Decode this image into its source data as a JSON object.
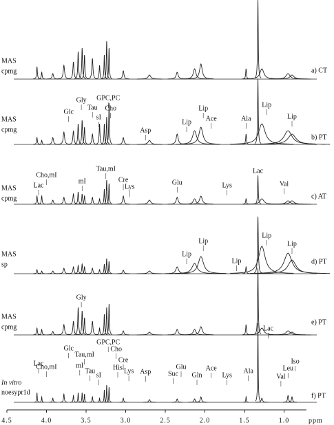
{
  "chart_data": {
    "type": "line",
    "xlabel": "ppm",
    "xlim": [
      4.5,
      0.5
    ],
    "xticks": [
      4.5,
      {
        "value": 4,
        "label": "4.0"
      },
      3.5,
      {
        "value": 3,
        "label": "3.0"
      },
      2.5,
      {
        "value": 2,
        "label": "2.0"
      },
      1.5,
      {
        "value": 1,
        "label": "1.0"
      }
    ],
    "color": "#222",
    "x": [
      4.12,
      4.06,
      3.92,
      3.78,
      3.66,
      3.6,
      3.55,
      3.52,
      3.42,
      3.33,
      3.27,
      3.24,
      3.21,
      3.03,
      2.7,
      2.35,
      2.13,
      2.05,
      1.48,
      1.33,
      1.28,
      0.95,
      0.9
    ],
    "series": [
      {
        "labels": [
          "MAS",
          "cpmg"
        ],
        "tag": "a) CT",
        "values": [
          18,
          10,
          8,
          20,
          25,
          40,
          45,
          35,
          30,
          20,
          35,
          55,
          45,
          12,
          6,
          10,
          15,
          22,
          15,
          115,
          15,
          8,
          6
        ],
        "widths": [
          0.006,
          0.006,
          0.01,
          0.01,
          0.008,
          0.006,
          0.006,
          0.006,
          0.008,
          0.006,
          0.005,
          0.005,
          0.005,
          0.01,
          0.02,
          0.015,
          0.02,
          0.02,
          0.006,
          0.005,
          0.03,
          0.03,
          0.03
        ],
        "annotations": []
      },
      {
        "labels": [
          "MAS",
          "cpmg"
        ],
        "tag": "b) PT",
        "values": [
          10,
          6,
          10,
          18,
          20,
          30,
          35,
          25,
          15,
          30,
          30,
          40,
          60,
          10,
          6,
          15,
          20,
          25,
          15,
          95,
          30,
          20,
          15
        ],
        "widths": [
          0.006,
          0.006,
          0.01,
          0.01,
          0.008,
          0.006,
          0.006,
          0.006,
          0.008,
          0.006,
          0.005,
          0.005,
          0.005,
          0.01,
          0.02,
          0.015,
          0.03,
          0.03,
          0.006,
          0.005,
          0.05,
          0.06,
          0.06
        ],
        "annotations": [
          {
            "text": "Glc",
            "x": 3.72
          },
          {
            "text": "Gly",
            "x": 3.56
          },
          {
            "text": "Tau",
            "x": 3.42
          },
          {
            "text": "sI",
            "x": 3.34
          },
          {
            "text": "GPC,PC",
            "x": 3.22
          },
          {
            "text": "Cho",
            "x": 3.19
          },
          {
            "text": "Asp",
            "x": 2.75
          },
          {
            "text": "Lip",
            "x": 2.23
          },
          {
            "text": "Lip",
            "x": 2.02
          },
          {
            "text": "Ace",
            "x": 1.92
          },
          {
            "text": "Ala",
            "x": 1.48
          },
          {
            "text": "Lip",
            "x": 1.22
          },
          {
            "text": "Lip",
            "x": 0.9
          }
        ]
      },
      {
        "labels": [
          "MAS",
          "cpmg"
        ],
        "tag": "c) AT",
        "values": [
          12,
          12,
          6,
          10,
          15,
          18,
          15,
          12,
          10,
          8,
          22,
          35,
          30,
          12,
          6,
          10,
          8,
          12,
          8,
          42,
          8,
          5,
          5
        ],
        "widths": [
          0.006,
          0.006,
          0.01,
          0.01,
          0.008,
          0.006,
          0.006,
          0.006,
          0.008,
          0.006,
          0.005,
          0.005,
          0.005,
          0.01,
          0.02,
          0.015,
          0.02,
          0.02,
          0.006,
          0.005,
          0.03,
          0.03,
          0.03
        ],
        "annotations": [
          {
            "text": "Lac",
            "x": 4.1
          },
          {
            "text": "Cho,mI",
            "x": 4.0
          },
          {
            "text": "mI",
            "x": 3.55
          },
          {
            "text": "Tau,mI",
            "x": 3.25
          },
          {
            "text": "Cre",
            "x": 3.03
          },
          {
            "text": "Lys",
            "x": 2.95
          },
          {
            "text": "Glu",
            "x": 2.35
          },
          {
            "text": "Lys",
            "x": 1.72
          },
          {
            "text": "Val",
            "x": 1.0
          },
          {
            "text": "Lac",
            "x": 1.33
          }
        ]
      },
      {
        "labels": [
          "MAS",
          "sp"
        ],
        "tag": "d) PT",
        "values": [
          6,
          4,
          4,
          8,
          10,
          12,
          14,
          10,
          8,
          6,
          14,
          22,
          18,
          5,
          4,
          10,
          15,
          25,
          10,
          83,
          40,
          30,
          20
        ],
        "widths": [
          0.006,
          0.006,
          0.01,
          0.01,
          0.008,
          0.006,
          0.006,
          0.006,
          0.008,
          0.006,
          0.005,
          0.005,
          0.005,
          0.01,
          0.02,
          0.02,
          0.04,
          0.04,
          0.006,
          0.006,
          0.05,
          0.06,
          0.06
        ],
        "annotations": [
          {
            "text": "Lip",
            "x": 2.23
          },
          {
            "text": "Lip",
            "x": 2.02
          },
          {
            "text": "Lip",
            "x": 1.6
          },
          {
            "text": "Lip",
            "x": 1.22
          },
          {
            "text": "Lip",
            "x": 0.9
          }
        ]
      },
      {
        "labels": [
          "MAS",
          "cpmg"
        ],
        "tag": "e) PT",
        "values": [
          10,
          8,
          5,
          15,
          20,
          40,
          35,
          25,
          20,
          10,
          30,
          40,
          45,
          6,
          4,
          8,
          8,
          12,
          15,
          97,
          10,
          6,
          4
        ],
        "widths": [
          0.006,
          0.006,
          0.01,
          0.01,
          0.008,
          0.006,
          0.006,
          0.006,
          0.008,
          0.006,
          0.005,
          0.005,
          0.005,
          0.01,
          0.02,
          0.015,
          0.02,
          0.02,
          0.006,
          0.005,
          0.03,
          0.03,
          0.03
        ],
        "annotations": [
          {
            "text": "Gly",
            "x": 3.56
          }
        ]
      },
      {
        "labels": [
          "In vitro",
          "noesypr1d"
        ],
        "tag": "f) PT",
        "values": [
          14,
          8,
          6,
          12,
          10,
          14,
          14,
          12,
          8,
          6,
          18,
          25,
          22,
          6,
          4,
          5,
          5,
          8,
          8,
          115,
          6,
          10,
          8
        ],
        "widths": [
          0.004,
          0.004,
          0.006,
          0.006,
          0.005,
          0.004,
          0.004,
          0.004,
          0.005,
          0.004,
          0.004,
          0.004,
          0.004,
          0.006,
          0.01,
          0.008,
          0.01,
          0.01,
          0.004,
          0.004,
          0.01,
          0.008,
          0.008
        ],
        "annotations": [
          {
            "text": "Lac",
            "x": 4.1
          },
          {
            "text": "Cho,mI",
            "x": 4.0
          },
          {
            "text": "Glc",
            "x": 3.72
          },
          {
            "text": "mI",
            "x": 3.58
          },
          {
            "text": "Tau,mI",
            "x": 3.52
          },
          {
            "text": "Tau",
            "x": 3.45
          },
          {
            "text": "sI",
            "x": 3.34
          },
          {
            "text": "GPC,PC",
            "x": 3.22
          },
          {
            "text": "Cho",
            "x": 3.12
          },
          {
            "text": "His",
            "x": 3.1
          },
          {
            "text": "Cre",
            "x": 3.03
          },
          {
            "text": "Lys",
            "x": 2.96
          },
          {
            "text": "Asp",
            "x": 2.75
          },
          {
            "text": "Suc",
            "x": 2.4
          },
          {
            "text": "Glu",
            "x": 2.3
          },
          {
            "text": "Gln",
            "x": 2.1
          },
          {
            "text": "Ace",
            "x": 1.92
          },
          {
            "text": "Lys",
            "x": 1.72
          },
          {
            "text": "Ala",
            "x": 1.45
          },
          {
            "text": "Lac",
            "x": 1.2
          },
          {
            "text": "Val",
            "x": 1.04
          },
          {
            "text": "Leu",
            "x": 0.95
          },
          {
            "text": "Iso",
            "x": 0.86
          }
        ]
      }
    ]
  }
}
